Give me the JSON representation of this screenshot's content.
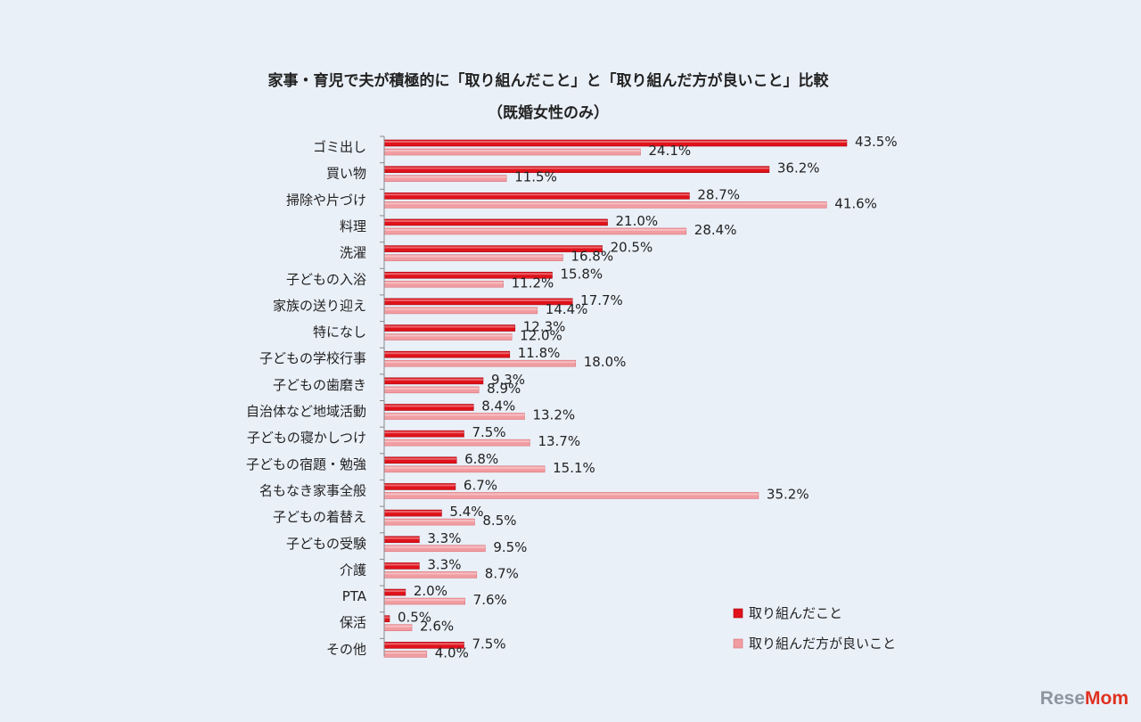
{
  "chart_data": {
    "type": "bar",
    "orientation": "horizontal",
    "title": "家事・育児で夫が積極的に「取り組んだこと」と「取り組んだ方が良いこと」比較",
    "subtitle": "（既婚女性のみ）",
    "categories": [
      "ゴミ出し",
      "買い物",
      "掃除や片づけ",
      "料理",
      "洗濯",
      "子どもの入浴",
      "家族の送り迎え",
      "特になし",
      "子どもの学校行事",
      "子どもの歯磨き",
      "自治体など地域活動",
      "子どもの寝かしつけ",
      "子どもの宿題・勉強",
      "名もなき家事全般",
      "子どもの着替え",
      "子どもの受験",
      "介護",
      "PTA",
      "保活",
      "その他"
    ],
    "series": [
      {
        "name": "取り組んだこと",
        "color": "#e0121b",
        "values": [
          43.5,
          36.2,
          28.7,
          21.0,
          20.5,
          15.8,
          17.7,
          12.3,
          11.8,
          9.3,
          8.4,
          7.5,
          6.8,
          6.7,
          5.4,
          3.3,
          3.3,
          2.0,
          0.5,
          7.5
        ]
      },
      {
        "name": "取り組んだ方が良いこと",
        "color": "#f19ca1",
        "values": [
          24.1,
          11.5,
          41.6,
          28.4,
          16.8,
          11.2,
          14.4,
          12.0,
          18.0,
          8.9,
          13.2,
          13.7,
          15.1,
          35.2,
          8.5,
          9.5,
          8.7,
          7.6,
          2.6,
          4.0
        ]
      }
    ],
    "value_suffix": "%",
    "xlim": [
      0,
      45
    ],
    "legend_position": "bottom-right",
    "grid": false
  },
  "watermark": {
    "part1": "Rese",
    "part2": "Mom"
  }
}
